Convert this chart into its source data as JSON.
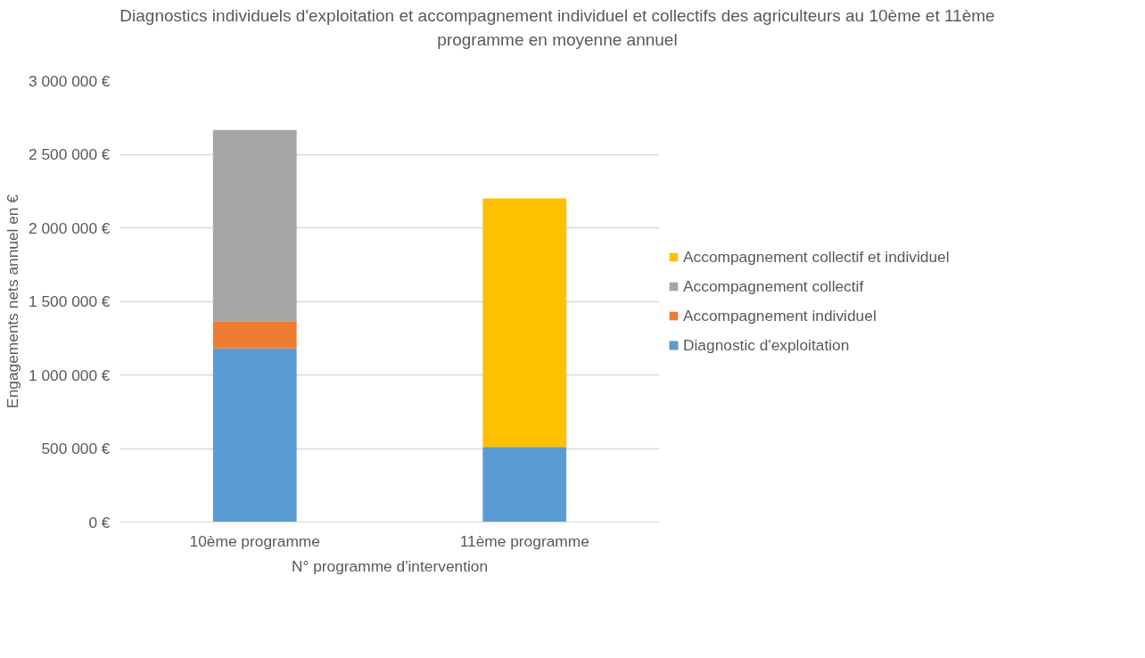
{
  "chart_data": {
    "type": "bar",
    "stacked": true,
    "title": "Diagnostics individuels d'exploitation et accompagnement individuel et collectifs des agriculteurs au 10ème et 11ème programme en moyenne annuel",
    "xlabel": "N° programme d'intervention",
    "ylabel": "Engagements nets annuel en €",
    "categories": [
      "10ème programme",
      "11ème programme"
    ],
    "series": [
      {
        "name": "Diagnostic d'exploitation",
        "color": "#5b9bd5",
        "values": [
          1180000,
          510000
        ]
      },
      {
        "name": "Accompagnement individuel",
        "color": "#ed7d31",
        "values": [
          185000,
          null
        ]
      },
      {
        "name": "Accompagnement collectif",
        "color": "#a5a5a5",
        "values": [
          1300000,
          null
        ]
      },
      {
        "name": "Accompagnement collectif et individuel",
        "color": "#ffc000",
        "values": [
          null,
          1690000
        ]
      }
    ],
    "ylim": [
      0,
      3000000
    ],
    "yticks": [
      {
        "value": 0,
        "label": "0 €"
      },
      {
        "value": 500000,
        "label": "500 000 €"
      },
      {
        "value": 1000000,
        "label": "1 000 000 €"
      },
      {
        "value": 1500000,
        "label": "1 500 000 €"
      },
      {
        "value": 2000000,
        "label": "2 000 000 €"
      },
      {
        "value": 2500000,
        "label": "2 500 000 €"
      },
      {
        "value": 3000000,
        "label": "3 000 000 €"
      }
    ],
    "grid": "y",
    "legend": "right"
  }
}
